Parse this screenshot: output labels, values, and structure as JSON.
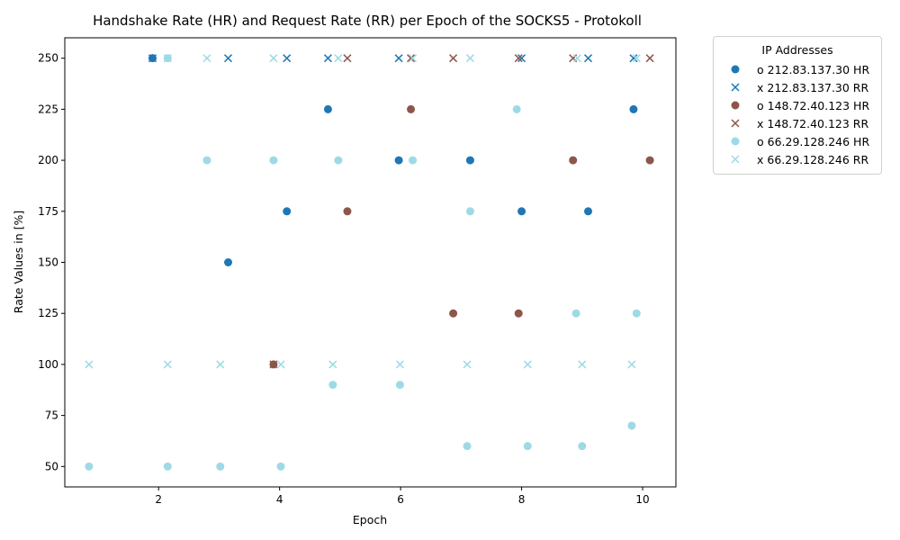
{
  "chart_data": {
    "type": "scatter",
    "title": "Handshake Rate (HR) and Request Rate (RR) per Epoch of the SOCKS5 - Protokoll",
    "xlabel": "Epoch",
    "ylabel": "Rate Values in [%]",
    "xlim": [
      0.45,
      10.55
    ],
    "ylim": [
      40,
      260
    ],
    "xticks": [
      2,
      4,
      6,
      8,
      10
    ],
    "yticks": [
      50,
      75,
      100,
      125,
      150,
      175,
      200,
      225,
      250
    ],
    "grid": false,
    "legend": {
      "title": "IP Addresses",
      "placement": "outside-top-right",
      "entries": [
        "o 212.83.137.30 HR",
        "x 212.83.137.30 RR",
        "o 148.72.40.123 HR",
        "x 148.72.40.123 RR",
        "o 66.29.128.246 HR",
        "x 66.29.128.246 RR"
      ]
    },
    "series": [
      {
        "name": "o 212.83.137.30 HR",
        "marker": "circle",
        "color": "#1f77b4",
        "points": [
          [
            1.9,
            250
          ],
          [
            3.15,
            150
          ],
          [
            4.12,
            175
          ],
          [
            4.8,
            225
          ],
          [
            5.97,
            200
          ],
          [
            7.15,
            200
          ],
          [
            8.0,
            175
          ],
          [
            9.1,
            175
          ],
          [
            9.85,
            225
          ]
        ]
      },
      {
        "name": "x 212.83.137.30 RR",
        "marker": "x",
        "color": "#1f77b4",
        "points": [
          [
            1.9,
            250
          ],
          [
            3.15,
            250
          ],
          [
            4.12,
            250
          ],
          [
            4.8,
            250
          ],
          [
            5.97,
            250
          ],
          [
            8.0,
            250
          ],
          [
            9.1,
            250
          ],
          [
            9.85,
            250
          ]
        ]
      },
      {
        "name": "o 148.72.40.123 HR",
        "marker": "circle",
        "color": "#8c564b",
        "points": [
          [
            3.9,
            100
          ],
          [
            5.12,
            175
          ],
          [
            6.17,
            225
          ],
          [
            6.87,
            125
          ],
          [
            7.95,
            125
          ],
          [
            8.85,
            200
          ],
          [
            10.12,
            200
          ]
        ]
      },
      {
        "name": "x 148.72.40.123 RR",
        "marker": "x",
        "color": "#8c564b",
        "points": [
          [
            3.9,
            100
          ],
          [
            5.12,
            250
          ],
          [
            6.17,
            250
          ],
          [
            6.87,
            250
          ],
          [
            7.95,
            250
          ],
          [
            8.85,
            250
          ],
          [
            10.12,
            250
          ]
        ]
      },
      {
        "name": "o 66.29.128.246 HR",
        "marker": "circle",
        "color": "#9edae5",
        "points": [
          [
            0.85,
            50
          ],
          [
            2.15,
            50
          ],
          [
            2.15,
            250
          ],
          [
            2.8,
            200
          ],
          [
            3.02,
            50
          ],
          [
            3.9,
            200
          ],
          [
            4.02,
            50
          ],
          [
            4.88,
            90
          ],
          [
            4.97,
            200
          ],
          [
            5.99,
            90
          ],
          [
            6.2,
            200
          ],
          [
            7.1,
            60
          ],
          [
            7.15,
            175
          ],
          [
            7.92,
            225
          ],
          [
            8.1,
            60
          ],
          [
            8.9,
            125
          ],
          [
            9.0,
            60
          ],
          [
            9.82,
            70
          ],
          [
            9.9,
            125
          ]
        ]
      },
      {
        "name": "x 66.29.128.246 RR",
        "marker": "x",
        "color": "#9edae5",
        "points": [
          [
            0.85,
            100
          ],
          [
            2.15,
            100
          ],
          [
            2.15,
            250
          ],
          [
            2.8,
            250
          ],
          [
            3.02,
            100
          ],
          [
            3.9,
            250
          ],
          [
            4.02,
            100
          ],
          [
            4.88,
            100
          ],
          [
            4.97,
            250
          ],
          [
            5.99,
            100
          ],
          [
            6.2,
            250
          ],
          [
            7.1,
            100
          ],
          [
            7.15,
            250
          ],
          [
            8.1,
            100
          ],
          [
            8.92,
            250
          ],
          [
            9.0,
            100
          ],
          [
            9.82,
            100
          ],
          [
            9.9,
            250
          ]
        ]
      }
    ]
  }
}
